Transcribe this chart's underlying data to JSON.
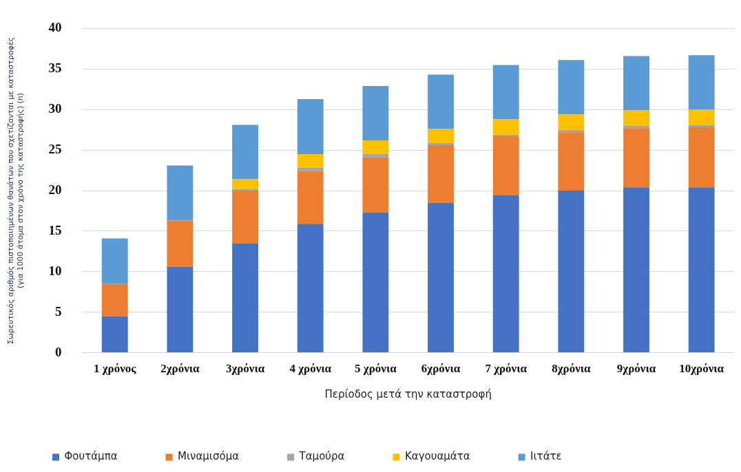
{
  "chart_data": {
    "type": "bar",
    "stacked": true,
    "xlabel": "Περίοδος μετά την καταστροφή",
    "ylabel": "Σωρευτικός αριθμός πιστοποιημένων θανάτων που σχετίζονται με καταστροφές\n(για 1000 άτομα στον χρόνο της καταστροφής) (n)",
    "categories": [
      "1 χρόνος",
      "2χρόνια",
      "3χρόνια",
      "4 χρόνια",
      "5 χρόνια",
      "6χρόνια",
      "7 χρόνια",
      "8χρόνια",
      "9χρόνια",
      "10χρόνια"
    ],
    "series": [
      {
        "name": "Φουτάμπα",
        "color": "#4472c4",
        "values": [
          4.5,
          10.6,
          13.5,
          15.9,
          17.3,
          18.5,
          19.4,
          20.0,
          20.4,
          20.4
        ]
      },
      {
        "name": "Μιναμισόμα",
        "color": "#ed7d31",
        "values": [
          4.0,
          5.7,
          6.5,
          6.5,
          6.8,
          7.1,
          7.3,
          7.2,
          7.3,
          7.4
        ]
      },
      {
        "name": "Ταμούρα",
        "color": "#a5a5a5",
        "values": [
          0,
          0,
          0.2,
          0.4,
          0.4,
          0.3,
          0.2,
          0.3,
          0.3,
          0.3
        ]
      },
      {
        "name": "Καγουαμάτα",
        "color": "#ffc000",
        "values": [
          0,
          0,
          1.2,
          1.7,
          1.7,
          1.7,
          1.9,
          1.9,
          1.9,
          1.9
        ]
      },
      {
        "name": "Ιιτάτε",
        "color": "#5b9bd5",
        "values": [
          5.6,
          6.8,
          6.7,
          6.8,
          6.7,
          6.7,
          6.7,
          6.7,
          6.7,
          6.7
        ]
      }
    ],
    "ylim": [
      0,
      40
    ],
    "yticks": [
      0,
      5,
      10,
      15,
      20,
      25,
      30,
      35,
      40
    ],
    "grid": "y",
    "legend": "bottom"
  }
}
